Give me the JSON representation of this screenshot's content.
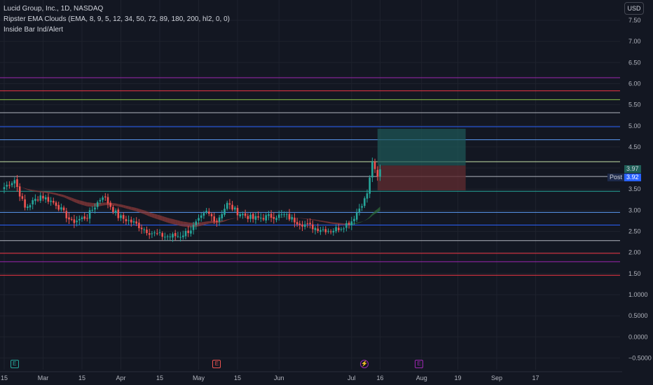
{
  "legend": {
    "title": "Lucid Group, Inc., 1D, NASDAQ",
    "indicator1": "Ripster EMA Clouds (EMA, 8, 9, 5, 12, 34, 50, 72, 89, 180, 200, hl2, 0, 0)",
    "indicator2": "Inside Bar Ind/Alert"
  },
  "toolbar": {
    "currency_label": "USD"
  },
  "price_tags": {
    "last_price": "3.97",
    "post_label": "Post",
    "post_price": "3.92"
  },
  "events": [
    {
      "label": "E",
      "color": "#26a69a",
      "date_index": 4
    },
    {
      "label": "E",
      "color": "#ef5350",
      "date_index": 82
    },
    {
      "label": "⚡",
      "color": "#9c27b0",
      "date_index": 139
    },
    {
      "label": "E",
      "color": "#9c27b0",
      "date_index": 160
    }
  ],
  "colors": {
    "background": "#131722",
    "up": "#26a69a",
    "down": "#ef5350",
    "cloud_red": "#8b3a3a",
    "cloud_tan": "#8a6a3e",
    "cloud_green": "#2e6b3a",
    "target_zone": "#1e5a58",
    "stop_zone": "#5c2a30"
  },
  "chart_data": {
    "type": "candlestick",
    "y_range": [
      -0.5,
      7.5
    ],
    "y_ticks": [
      "7.50",
      "7.00",
      "6.50",
      "6.00",
      "5.50",
      "5.00",
      "4.50",
      "4.00",
      "3.50",
      "3.00",
      "2.50",
      "2.00",
      "1.50",
      "1.0000",
      "0.5000",
      "0.0000",
      "−0.5000"
    ],
    "x_ticks": [
      {
        "label": "15",
        "date_index": 0
      },
      {
        "label": "Mar",
        "date_index": 15
      },
      {
        "label": "15",
        "date_index": 30
      },
      {
        "label": "Apr",
        "date_index": 45
      },
      {
        "label": "15",
        "date_index": 60
      },
      {
        "label": "May",
        "date_index": 75
      },
      {
        "label": "15",
        "date_index": 90
      },
      {
        "label": "Jun",
        "date_index": 106
      },
      {
        "label": "Jul",
        "date_index": 134
      },
      {
        "label": "16",
        "date_index": 145
      },
      {
        "label": "Aug",
        "date_index": 161
      },
      {
        "label": "19",
        "date_index": 175
      },
      {
        "label": "Sep",
        "date_index": 190
      },
      {
        "label": "17",
        "date_index": 205
      }
    ],
    "horizontal_levels": [
      {
        "price": 6.14,
        "color": "#9c27b0"
      },
      {
        "price": 5.83,
        "color": "#f23645"
      },
      {
        "price": 5.62,
        "color": "#8bc34a"
      },
      {
        "price": 5.31,
        "color": "#b2b5be"
      },
      {
        "price": 4.98,
        "color": "#2962ff"
      },
      {
        "price": 4.67,
        "color": "#5b9cf6"
      },
      {
        "price": 4.15,
        "color": "#c5e1a5"
      },
      {
        "price": 3.8,
        "color": "#b2b5be"
      },
      {
        "price": 3.45,
        "color": "#26a69a"
      },
      {
        "price": 2.95,
        "color": "#5b9cf6"
      },
      {
        "price": 2.65,
        "color": "#2962ff"
      },
      {
        "price": 2.28,
        "color": "#b2b5be"
      },
      {
        "price": 1.98,
        "color": "#f23645"
      },
      {
        "price": 1.78,
        "color": "#9c27b0"
      },
      {
        "price": 1.46,
        "color": "#f23645"
      }
    ],
    "position": {
      "entry": 4.06,
      "target": 4.93,
      "stop": 3.47,
      "start_index": 144,
      "end_index": 178
    },
    "anchor_points": [
      {
        "i": 0,
        "p": 3.55
      },
      {
        "i": 4,
        "p": 3.72
      },
      {
        "i": 8,
        "p": 3.05
      },
      {
        "i": 14,
        "p": 3.35
      },
      {
        "i": 20,
        "p": 3.15
      },
      {
        "i": 26,
        "p": 2.72
      },
      {
        "i": 32,
        "p": 2.85
      },
      {
        "i": 38,
        "p": 3.35
      },
      {
        "i": 44,
        "p": 2.85
      },
      {
        "i": 50,
        "p": 2.7
      },
      {
        "i": 56,
        "p": 2.48
      },
      {
        "i": 62,
        "p": 2.38
      },
      {
        "i": 68,
        "p": 2.4
      },
      {
        "i": 72,
        "p": 2.55
      },
      {
        "i": 78,
        "p": 2.95
      },
      {
        "i": 82,
        "p": 2.75
      },
      {
        "i": 86,
        "p": 3.15
      },
      {
        "i": 90,
        "p": 2.95
      },
      {
        "i": 96,
        "p": 2.8
      },
      {
        "i": 102,
        "p": 2.85
      },
      {
        "i": 108,
        "p": 2.88
      },
      {
        "i": 114,
        "p": 2.7
      },
      {
        "i": 120,
        "p": 2.58
      },
      {
        "i": 126,
        "p": 2.52
      },
      {
        "i": 130,
        "p": 2.6
      },
      {
        "i": 134,
        "p": 2.75
      },
      {
        "i": 137,
        "p": 3.05
      },
      {
        "i": 140,
        "p": 3.4
      },
      {
        "i": 142,
        "p": 4.15
      },
      {
        "i": 144,
        "p": 3.8
      },
      {
        "i": 145,
        "p": 3.97
      }
    ]
  }
}
